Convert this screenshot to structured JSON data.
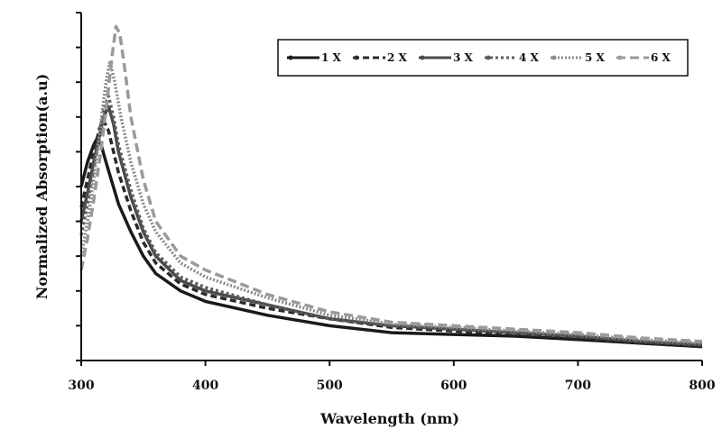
{
  "chart_data": {
    "type": "line",
    "title": "",
    "xlabel": "Wavelength (nm)",
    "ylabel": "Normalized Absorption(a.u)",
    "xlim": [
      300,
      800
    ],
    "ylim": [
      0,
      1.0
    ],
    "x_ticks": [
      "300",
      "400",
      "500",
      "600",
      "700",
      "800"
    ],
    "y_tick_count": 11,
    "grid": false,
    "legend": "top-right",
    "series": [
      {
        "name": "1 X",
        "color": "#1a1a1a",
        "dash": "",
        "x": [
          300,
          305,
          310,
          313,
          316,
          320,
          325,
          330,
          340,
          350,
          360,
          380,
          400,
          450,
          500,
          550,
          600,
          650,
          700,
          750,
          800
        ],
        "y": [
          0.5,
          0.57,
          0.62,
          0.64,
          0.62,
          0.57,
          0.51,
          0.45,
          0.37,
          0.3,
          0.25,
          0.2,
          0.17,
          0.13,
          0.1,
          0.08,
          0.075,
          0.07,
          0.06,
          0.05,
          0.04
        ]
      },
      {
        "name": "2 X",
        "color": "#2a2a2a",
        "dash": "7,4",
        "x": [
          300,
          305,
          310,
          315,
          318,
          322,
          326,
          330,
          340,
          350,
          360,
          380,
          400,
          450,
          500,
          550,
          600,
          650,
          700,
          750,
          800
        ],
        "y": [
          0.44,
          0.52,
          0.6,
          0.67,
          0.69,
          0.66,
          0.6,
          0.54,
          0.43,
          0.34,
          0.28,
          0.22,
          0.19,
          0.15,
          0.12,
          0.095,
          0.085,
          0.075,
          0.065,
          0.05,
          0.04
        ]
      },
      {
        "name": "3 X",
        "color": "#4a4a4a",
        "dash": "",
        "x": [
          300,
          305,
          310,
          315,
          318,
          322,
          326,
          330,
          340,
          350,
          360,
          380,
          400,
          450,
          500,
          550,
          600,
          650,
          700,
          750,
          800
        ],
        "y": [
          0.4,
          0.48,
          0.57,
          0.65,
          0.7,
          0.73,
          0.68,
          0.6,
          0.47,
          0.37,
          0.3,
          0.23,
          0.2,
          0.16,
          0.12,
          0.1,
          0.09,
          0.08,
          0.07,
          0.055,
          0.045
        ]
      },
      {
        "name": "4 X",
        "color": "#5a5a5a",
        "dash": "3,3",
        "x": [
          300,
          305,
          310,
          315,
          318,
          322,
          326,
          330,
          340,
          350,
          360,
          380,
          400,
          450,
          500,
          550,
          600,
          650,
          700,
          750,
          800
        ],
        "y": [
          0.36,
          0.45,
          0.55,
          0.65,
          0.72,
          0.76,
          0.7,
          0.62,
          0.49,
          0.38,
          0.31,
          0.24,
          0.21,
          0.16,
          0.12,
          0.1,
          0.09,
          0.08,
          0.07,
          0.055,
          0.045
        ]
      },
      {
        "name": "5 X",
        "color": "#8a8a8a",
        "dash": "2,2",
        "x": [
          300,
          305,
          310,
          315,
          320,
          323,
          327,
          332,
          340,
          350,
          360,
          380,
          400,
          450,
          500,
          550,
          600,
          650,
          700,
          750,
          800
        ],
        "y": [
          0.3,
          0.4,
          0.52,
          0.66,
          0.8,
          0.86,
          0.8,
          0.7,
          0.57,
          0.45,
          0.37,
          0.28,
          0.24,
          0.18,
          0.13,
          0.105,
          0.095,
          0.085,
          0.075,
          0.06,
          0.05
        ]
      },
      {
        "name": "6 X",
        "color": "#9a9a9a",
        "dash": "10,5",
        "x": [
          300,
          305,
          310,
          315,
          320,
          325,
          328,
          331,
          335,
          340,
          350,
          360,
          380,
          400,
          450,
          500,
          550,
          600,
          650,
          700,
          750,
          800
        ],
        "y": [
          0.26,
          0.35,
          0.46,
          0.58,
          0.72,
          0.88,
          0.96,
          0.94,
          0.84,
          0.7,
          0.52,
          0.4,
          0.3,
          0.26,
          0.19,
          0.14,
          0.11,
          0.1,
          0.09,
          0.08,
          0.065,
          0.055
        ]
      }
    ]
  }
}
